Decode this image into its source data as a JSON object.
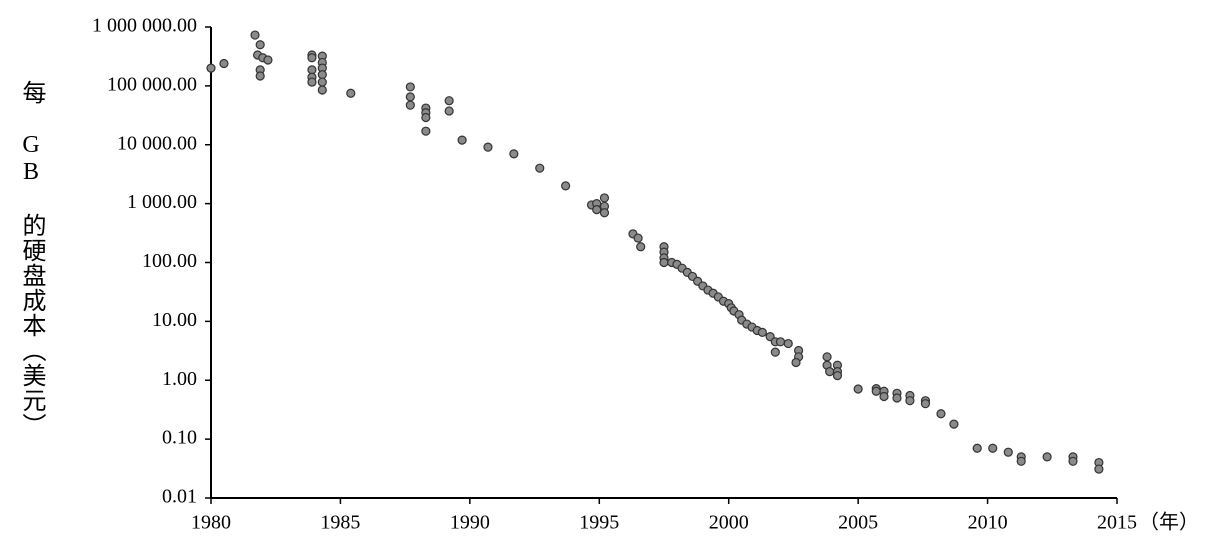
{
  "chart_data": {
    "type": "scatter",
    "y_label": "每 GB 的硬盘成本（美元）",
    "x_label": "（年）",
    "log_y": true,
    "color": "#8a8a8a",
    "edge_color": "#333333",
    "xlim": [
      1980,
      2015
    ],
    "xticks": [
      1980,
      1985,
      1990,
      1995,
      2000,
      2005,
      2010,
      2015
    ],
    "ylim": [
      0.01,
      1000000
    ],
    "yticks": [
      {
        "value": 0.01,
        "label": "0.01"
      },
      {
        "value": 0.1,
        "label": "0.10"
      },
      {
        "value": 1,
        "label": "1.00"
      },
      {
        "value": 10,
        "label": "10.00"
      },
      {
        "value": 100,
        "label": "100.00"
      },
      {
        "value": 1000,
        "label": "1 000.00"
      },
      {
        "value": 10000,
        "label": "10 000.00"
      },
      {
        "value": 100000,
        "label": "100 000.00"
      },
      {
        "value": 1000000,
        "label": "1 000 000.00"
      }
    ],
    "x": [
      1980.0,
      1980.5,
      1981.7,
      1981.9,
      1981.8,
      1982.0,
      1982.2,
      1981.9,
      1981.9,
      1983.9,
      1983.9,
      1983.9,
      1983.9,
      1983.9,
      1984.3,
      1984.3,
      1984.3,
      1984.3,
      1984.3,
      1984.3,
      1985.4,
      1987.7,
      1987.7,
      1987.7,
      1988.3,
      1988.3,
      1988.3,
      1988.3,
      1989.2,
      1989.2,
      1989.7,
      1990.7,
      1991.7,
      1992.7,
      1993.7,
      1994.7,
      1994.9,
      1994.9,
      1995.2,
      1995.2,
      1995.2,
      1996.3,
      1996.5,
      1996.6,
      1997.5,
      1997.5,
      1997.5,
      1997.5,
      1997.8,
      1998.0,
      1998.2,
      1998.4,
      1998.6,
      1998.8,
      1999.0,
      1999.2,
      1999.4,
      1999.6,
      1999.8,
      2000.0,
      2000.1,
      2000.2,
      2000.4,
      2000.5,
      2000.7,
      2000.9,
      2001.1,
      2001.3,
      2001.6,
      2001.8,
      2002.0,
      2002.3,
      2001.8,
      2002.7,
      2002.7,
      2002.6,
      2003.8,
      2003.8,
      2003.9,
      2004.2,
      2004.2,
      2004.2,
      2005.0,
      2005.7,
      2005.7,
      2006.0,
      2006.0,
      2006.5,
      2006.5,
      2007.0,
      2007.0,
      2007.6,
      2007.6,
      2008.2,
      2008.7,
      2009.6,
      2010.2,
      2010.8,
      2011.3,
      2011.3,
      2012.3,
      2013.3,
      2013.3,
      2014.3,
      2014.3
    ],
    "values": [
      200000,
      240000,
      730000,
      500000,
      335000,
      300000,
      275000,
      187000,
      147000,
      335000,
      300000,
      187000,
      140000,
      116000,
      320000,
      250000,
      200000,
      155000,
      116000,
      85000,
      75000,
      96000,
      65000,
      47000,
      42000,
      35000,
      29000,
      17000,
      56000,
      37500,
      12000,
      9100,
      7000,
      4000,
      2000,
      950,
      1000,
      790,
      1250,
      900,
      700,
      306,
      260,
      185,
      185,
      150,
      120,
      100,
      100,
      93,
      80,
      68,
      58,
      48,
      40,
      34,
      30,
      26,
      22,
      20,
      17,
      15,
      13,
      10.5,
      9,
      8,
      7,
      6.5,
      5.5,
      4.5,
      4.5,
      4.2,
      3,
      3.2,
      2.5,
      2.0,
      2.5,
      1.8,
      1.4,
      1.8,
      1.4,
      1.2,
      0.71,
      0.72,
      0.65,
      0.65,
      0.53,
      0.6,
      0.5,
      0.55,
      0.45,
      0.45,
      0.4,
      0.27,
      0.18,
      0.07,
      0.07,
      0.06,
      0.05,
      0.042,
      0.05,
      0.05,
      0.042,
      0.04,
      0.031
    ]
  }
}
